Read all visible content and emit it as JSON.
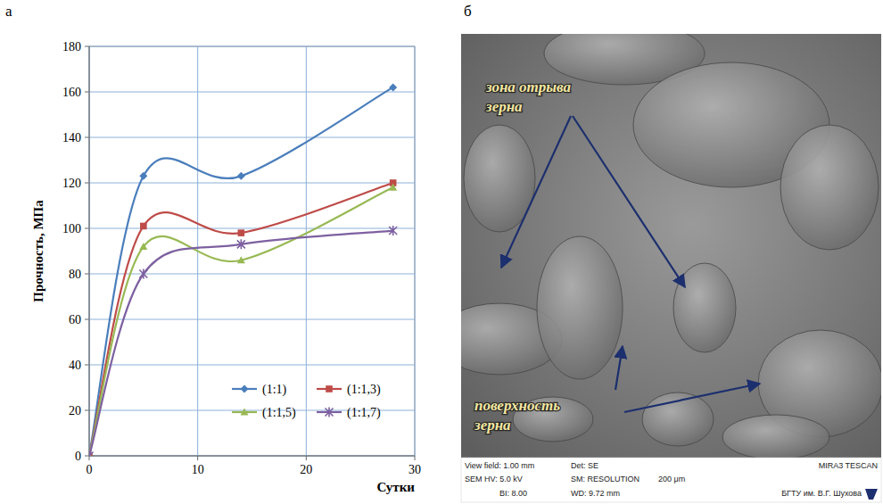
{
  "chart_data": {
    "type": "line",
    "x": [
      0,
      5,
      14,
      28
    ],
    "series": [
      {
        "name": "(1:1)",
        "color": "#4a7ebb",
        "marker": "diamond",
        "values": [
          0,
          123,
          123,
          162
        ]
      },
      {
        "name": "(1:1,3)",
        "color": "#be4b48",
        "marker": "square",
        "values": [
          0,
          101,
          98,
          120
        ]
      },
      {
        "name": "(1:1,5)",
        "color": "#98b954",
        "marker": "triangle",
        "values": [
          0,
          92,
          86,
          118
        ]
      },
      {
        "name": "(1:1,7)",
        "color": "#7d60a0",
        "marker": "asterisk",
        "values": [
          0,
          80,
          93,
          99
        ]
      }
    ],
    "y_label": "Прочность, МПа",
    "x_label": "Сутки",
    "xlim": [
      0,
      30
    ],
    "xticks": [
      0,
      10,
      20,
      30
    ],
    "ylim": [
      0,
      180
    ],
    "yticks": [
      0,
      20,
      40,
      60,
      80,
      100,
      120,
      140,
      160,
      180
    ],
    "grid": true,
    "legend": "lower right",
    "line_style": "smooth"
  },
  "panel_labels": [
    "а",
    "б"
  ],
  "photo": {
    "annotations": [
      {
        "lines": [
          "зона отрыва",
          "зерна"
        ]
      },
      {
        "lines": [
          "поверхность",
          "зерна"
        ]
      }
    ],
    "info_bar": [
      "View field: 1.00 mm",
      "Det: SE",
      "MIRA3 TESCAN",
      "SEM HV: 5.0 kV",
      "SM: RESOLUTION",
      "200 μm",
      "BI: 8.00",
      "WD: 9.72 mm",
      "БГТУ им. В.Г. Шухова"
    ]
  }
}
